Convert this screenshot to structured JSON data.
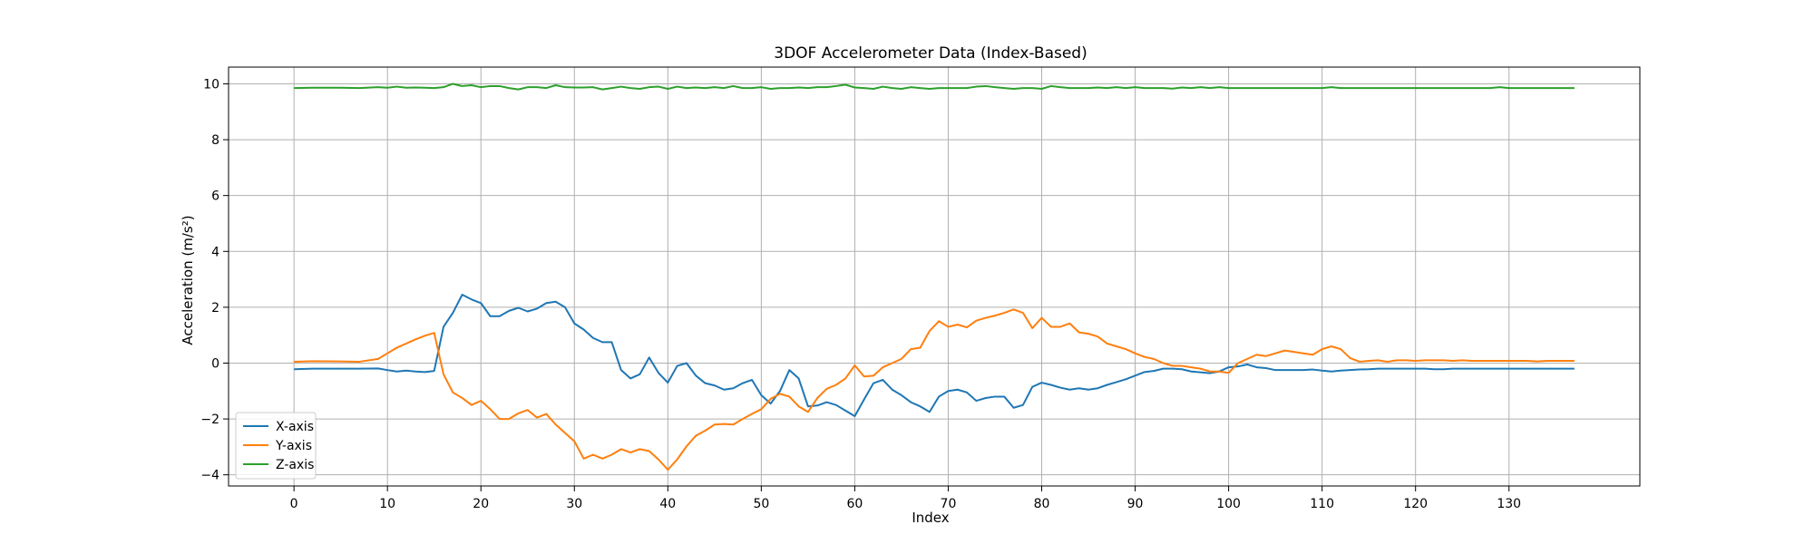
{
  "chart_data": {
    "type": "line",
    "title": "3DOF Accelerometer Data (Index-Based)",
    "xlabel": "Index",
    "ylabel": "Acceleration (m/s²)",
    "xlim": [
      -7,
      144
    ],
    "ylim": [
      -4.4,
      10.6
    ],
    "xticks": [
      0,
      10,
      20,
      30,
      40,
      50,
      60,
      70,
      80,
      90,
      100,
      110,
      120,
      130
    ],
    "yticks": [
      -4,
      -2,
      0,
      2,
      4,
      6,
      8,
      10
    ],
    "grid": true,
    "legend_position": "lower-left",
    "series": [
      {
        "name": "X-axis",
        "color": "#1f77b4",
        "x": [
          0,
          2,
          5,
          7,
          9,
          10,
          11,
          12,
          13,
          14,
          15,
          16,
          17,
          18,
          19,
          20,
          21,
          22,
          23,
          24,
          25,
          26,
          27,
          28,
          29,
          30,
          31,
          32,
          33,
          34,
          35,
          36,
          37,
          38,
          39,
          40,
          41,
          42,
          43,
          44,
          45,
          46,
          47,
          48,
          49,
          50,
          51,
          52,
          53,
          54,
          55,
          56,
          57,
          58,
          59,
          60,
          61,
          62,
          63,
          64,
          65,
          66,
          67,
          68,
          69,
          70,
          71,
          72,
          73,
          74,
          75,
          76,
          77,
          78,
          79,
          80,
          81,
          82,
          83,
          84,
          85,
          86,
          87,
          88,
          89,
          90,
          91,
          92,
          93,
          94,
          95,
          96,
          97,
          98,
          99,
          100,
          101,
          102,
          103,
          104,
          105,
          106,
          107,
          108,
          109,
          110,
          111,
          112,
          113,
          114,
          115,
          116,
          117,
          118,
          119,
          120,
          121,
          122,
          123,
          124,
          125,
          126,
          127,
          128,
          129,
          130,
          131,
          132,
          133,
          134,
          135,
          136,
          137
        ],
        "y": [
          -0.22,
          -0.2,
          -0.2,
          -0.2,
          -0.19,
          -0.25,
          -0.3,
          -0.27,
          -0.3,
          -0.32,
          -0.28,
          1.3,
          1.8,
          2.45,
          2.28,
          2.15,
          1.68,
          1.68,
          1.87,
          1.98,
          1.85,
          1.95,
          2.15,
          2.2,
          2.0,
          1.42,
          1.2,
          0.9,
          0.75,
          0.75,
          -0.25,
          -0.55,
          -0.4,
          0.2,
          -0.35,
          -0.7,
          -0.1,
          0.0,
          -0.45,
          -0.72,
          -0.8,
          -0.95,
          -0.9,
          -0.72,
          -0.6,
          -1.15,
          -1.45,
          -1.0,
          -0.25,
          -0.55,
          -1.55,
          -1.52,
          -1.4,
          -1.5,
          -1.7,
          -1.9,
          -1.3,
          -0.72,
          -0.6,
          -0.95,
          -1.15,
          -1.4,
          -1.55,
          -1.75,
          -1.2,
          -1.0,
          -0.95,
          -1.05,
          -1.35,
          -1.25,
          -1.2,
          -1.2,
          -1.6,
          -1.5,
          -0.85,
          -0.7,
          -0.78,
          -0.88,
          -0.95,
          -0.9,
          -0.95,
          -0.9,
          -0.78,
          -0.68,
          -0.58,
          -0.45,
          -0.32,
          -0.28,
          -0.2,
          -0.2,
          -0.22,
          -0.3,
          -0.33,
          -0.36,
          -0.3,
          -0.15,
          -0.12,
          -0.05,
          -0.15,
          -0.18,
          -0.25,
          -0.25,
          -0.25,
          -0.25,
          -0.23,
          -0.27,
          -0.3,
          -0.27,
          -0.25,
          -0.23,
          -0.22,
          -0.2,
          -0.2,
          -0.2,
          -0.2,
          -0.2,
          -0.2,
          -0.22,
          -0.22,
          -0.2,
          -0.2,
          -0.2,
          -0.2,
          -0.2,
          -0.2,
          -0.2,
          -0.2,
          -0.2,
          -0.2,
          -0.2,
          -0.2,
          -0.2,
          -0.2
        ],
        "y_note": ""
      },
      {
        "name": "Y-axis",
        "color": "#ff7f0e",
        "x": [
          0,
          2,
          5,
          7,
          9,
          10,
          11,
          12,
          13,
          14,
          15,
          16,
          17,
          18,
          19,
          20,
          21,
          22,
          23,
          24,
          25,
          26,
          27,
          28,
          29,
          30,
          31,
          32,
          33,
          34,
          35,
          36,
          37,
          38,
          39,
          40,
          41,
          42,
          43,
          44,
          45,
          46,
          47,
          48,
          49,
          50,
          51,
          52,
          53,
          54,
          55,
          56,
          57,
          58,
          59,
          60,
          61,
          62,
          63,
          64,
          65,
          66,
          67,
          68,
          69,
          70,
          71,
          72,
          73,
          74,
          75,
          76,
          77,
          78,
          79,
          80,
          81,
          82,
          83,
          84,
          85,
          86,
          87,
          88,
          89,
          90,
          91,
          92,
          93,
          94,
          95,
          96,
          97,
          98,
          99,
          100,
          101,
          102,
          103,
          104,
          105,
          106,
          107,
          108,
          109,
          110,
          111,
          112,
          113,
          114,
          115,
          116,
          117,
          118,
          119,
          120,
          121,
          122,
          123,
          124,
          125,
          126,
          127,
          128,
          129,
          130,
          131,
          132,
          133,
          134,
          135,
          136,
          137
        ],
        "y": [
          0.05,
          0.07,
          0.06,
          0.05,
          0.15,
          0.35,
          0.55,
          0.7,
          0.85,
          0.98,
          1.08,
          -0.4,
          -1.05,
          -1.25,
          -1.5,
          -1.35,
          -1.65,
          -2.0,
          -2.0,
          -1.8,
          -1.68,
          -1.95,
          -1.82,
          -2.2,
          -2.5,
          -2.8,
          -3.42,
          -3.28,
          -3.42,
          -3.28,
          -3.08,
          -3.2,
          -3.08,
          -3.15,
          -3.45,
          -3.82,
          -3.45,
          -2.98,
          -2.6,
          -2.42,
          -2.2,
          -2.18,
          -2.2,
          -2.0,
          -1.82,
          -1.65,
          -1.28,
          -1.1,
          -1.2,
          -1.55,
          -1.75,
          -1.25,
          -0.92,
          -0.78,
          -0.55,
          -0.08,
          -0.48,
          -0.45,
          -0.15,
          0.0,
          0.15,
          0.5,
          0.55,
          1.15,
          1.5,
          1.3,
          1.38,
          1.28,
          1.52,
          1.62,
          1.7,
          1.8,
          1.92,
          1.8,
          1.25,
          1.62,
          1.3,
          1.3,
          1.42,
          1.1,
          1.05,
          0.95,
          0.7,
          0.6,
          0.5,
          0.35,
          0.22,
          0.15,
          0.0,
          -0.1,
          -0.1,
          -0.15,
          -0.2,
          -0.3,
          -0.3,
          -0.35,
          0.0,
          0.15,
          0.3,
          0.25,
          0.35,
          0.45,
          0.4,
          0.35,
          0.3,
          0.5,
          0.6,
          0.5,
          0.18,
          0.05,
          0.08,
          0.1,
          0.05,
          0.1,
          0.1,
          0.08,
          0.1,
          0.1,
          0.1,
          0.08,
          0.1,
          0.08,
          0.08,
          0.08,
          0.08,
          0.08,
          0.08,
          0.08,
          0.06,
          0.08,
          0.08,
          0.08,
          0.08
        ],
        "y_note": ""
      },
      {
        "name": "Z-axis",
        "color": "#2ca02c",
        "x": [
          0,
          2,
          5,
          7,
          9,
          10,
          11,
          12,
          13,
          14,
          15,
          16,
          17,
          18,
          19,
          20,
          21,
          22,
          23,
          24,
          25,
          26,
          27,
          28,
          29,
          30,
          31,
          32,
          33,
          34,
          35,
          36,
          37,
          38,
          39,
          40,
          41,
          42,
          43,
          44,
          45,
          46,
          47,
          48,
          49,
          50,
          51,
          52,
          53,
          54,
          55,
          56,
          57,
          58,
          59,
          60,
          61,
          62,
          63,
          64,
          65,
          66,
          67,
          68,
          69,
          70,
          71,
          72,
          73,
          74,
          75,
          76,
          77,
          78,
          79,
          80,
          81,
          82,
          83,
          84,
          85,
          86,
          87,
          88,
          89,
          90,
          91,
          92,
          93,
          94,
          95,
          96,
          97,
          98,
          99,
          100,
          101,
          102,
          103,
          104,
          105,
          106,
          107,
          108,
          109,
          110,
          111,
          112,
          113,
          114,
          115,
          116,
          117,
          118,
          119,
          120,
          121,
          122,
          123,
          124,
          125,
          126,
          127,
          128,
          129,
          130,
          131,
          132,
          133,
          134,
          135,
          136,
          137
        ],
        "y": [
          9.85,
          9.86,
          9.86,
          9.85,
          9.88,
          9.86,
          9.9,
          9.86,
          9.87,
          9.86,
          9.85,
          9.88,
          10.0,
          9.92,
          9.95,
          9.88,
          9.92,
          9.92,
          9.85,
          9.8,
          9.88,
          9.88,
          9.85,
          9.95,
          9.88,
          9.87,
          9.87,
          9.88,
          9.8,
          9.85,
          9.9,
          9.85,
          9.82,
          9.88,
          9.9,
          9.82,
          9.9,
          9.85,
          9.87,
          9.85,
          9.88,
          9.85,
          9.92,
          9.85,
          9.85,
          9.88,
          9.82,
          9.85,
          9.85,
          9.87,
          9.85,
          9.88,
          9.88,
          9.92,
          9.97,
          9.87,
          9.85,
          9.82,
          9.9,
          9.85,
          9.82,
          9.88,
          9.85,
          9.82,
          9.85,
          9.85,
          9.85,
          9.85,
          9.9,
          9.92,
          9.88,
          9.85,
          9.82,
          9.85,
          9.85,
          9.82,
          9.92,
          9.88,
          9.85,
          9.85,
          9.85,
          9.87,
          9.85,
          9.88,
          9.85,
          9.88,
          9.85,
          9.85,
          9.85,
          9.83,
          9.87,
          9.85,
          9.88,
          9.85,
          9.88,
          9.85,
          9.85,
          9.85,
          9.85,
          9.85,
          9.85,
          9.85,
          9.85,
          9.85,
          9.85,
          9.85,
          9.88,
          9.85,
          9.85,
          9.85,
          9.85,
          9.85,
          9.85,
          9.85,
          9.85,
          9.85,
          9.85,
          9.85,
          9.85,
          9.85,
          9.85,
          9.85,
          9.85,
          9.85,
          9.88,
          9.85,
          9.85,
          9.85,
          9.85,
          9.85,
          9.85,
          9.85,
          9.85
        ],
        "y_note": ""
      }
    ]
  }
}
